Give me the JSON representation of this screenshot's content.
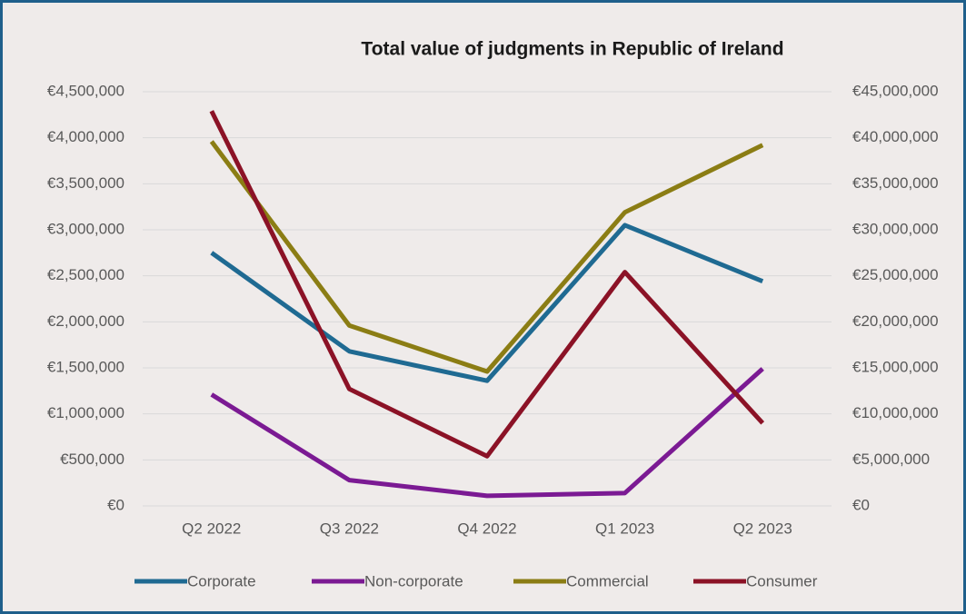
{
  "chart_data": {
    "type": "line",
    "title": "Total value of judgments in Republic of Ireland",
    "categories": [
      "Q2 2022",
      "Q3 2022",
      "Q4 2022",
      "Q1 2023",
      "Q2 2023"
    ],
    "series": [
      {
        "name": "Corporate",
        "color": "#1f6a92",
        "values": [
          2750000,
          1680000,
          1360000,
          3050000,
          2440000
        ]
      },
      {
        "name": "Non-corporate",
        "color": "#7b1a93",
        "values": [
          1210000,
          280000,
          110000,
          140000,
          1490000
        ]
      },
      {
        "name": "Commercial",
        "color": "#8b7d14",
        "axis": "y2",
        "values": [
          39600000,
          19600000,
          14600000,
          31900000,
          39200000
        ]
      },
      {
        "name": "Consumer",
        "color": "#8b1226",
        "axis": "y2",
        "values": [
          42900000,
          12700000,
          5400000,
          25400000,
          9000000
        ]
      }
    ],
    "ylim": [
      0,
      4500000
    ],
    "yticks": [
      {
        "value": 0,
        "label": "€0"
      },
      {
        "value": 500000,
        "label": "€500,000"
      },
      {
        "value": 1000000,
        "label": "€1,000,000"
      },
      {
        "value": 1500000,
        "label": "€1,500,000"
      },
      {
        "value": 2000000,
        "label": "€2,000,000"
      },
      {
        "value": 2500000,
        "label": "€2,500,000"
      },
      {
        "value": 3000000,
        "label": "€3,000,000"
      },
      {
        "value": 3500000,
        "label": "€3,500,000"
      },
      {
        "value": 4000000,
        "label": "€4,000,000"
      },
      {
        "value": 4500000,
        "label": "€4,500,000"
      }
    ],
    "y2lim": [
      0,
      45000000
    ],
    "y2ticks": [
      {
        "value": 0,
        "label": "€0"
      },
      {
        "value": 5000000,
        "label": "€5,000,000"
      },
      {
        "value": 10000000,
        "label": "€10,000,000"
      },
      {
        "value": 15000000,
        "label": "€15,000,000"
      },
      {
        "value": 20000000,
        "label": "€20,000,000"
      },
      {
        "value": 25000000,
        "label": "€25,000,000"
      },
      {
        "value": 30000000,
        "label": "€30,000,000"
      },
      {
        "value": 35000000,
        "label": "€35,000,000"
      },
      {
        "value": 40000000,
        "label": "€40,000,000"
      },
      {
        "value": 45000000,
        "label": "€45,000,000"
      }
    ],
    "grid": true,
    "legend": "bottom"
  }
}
